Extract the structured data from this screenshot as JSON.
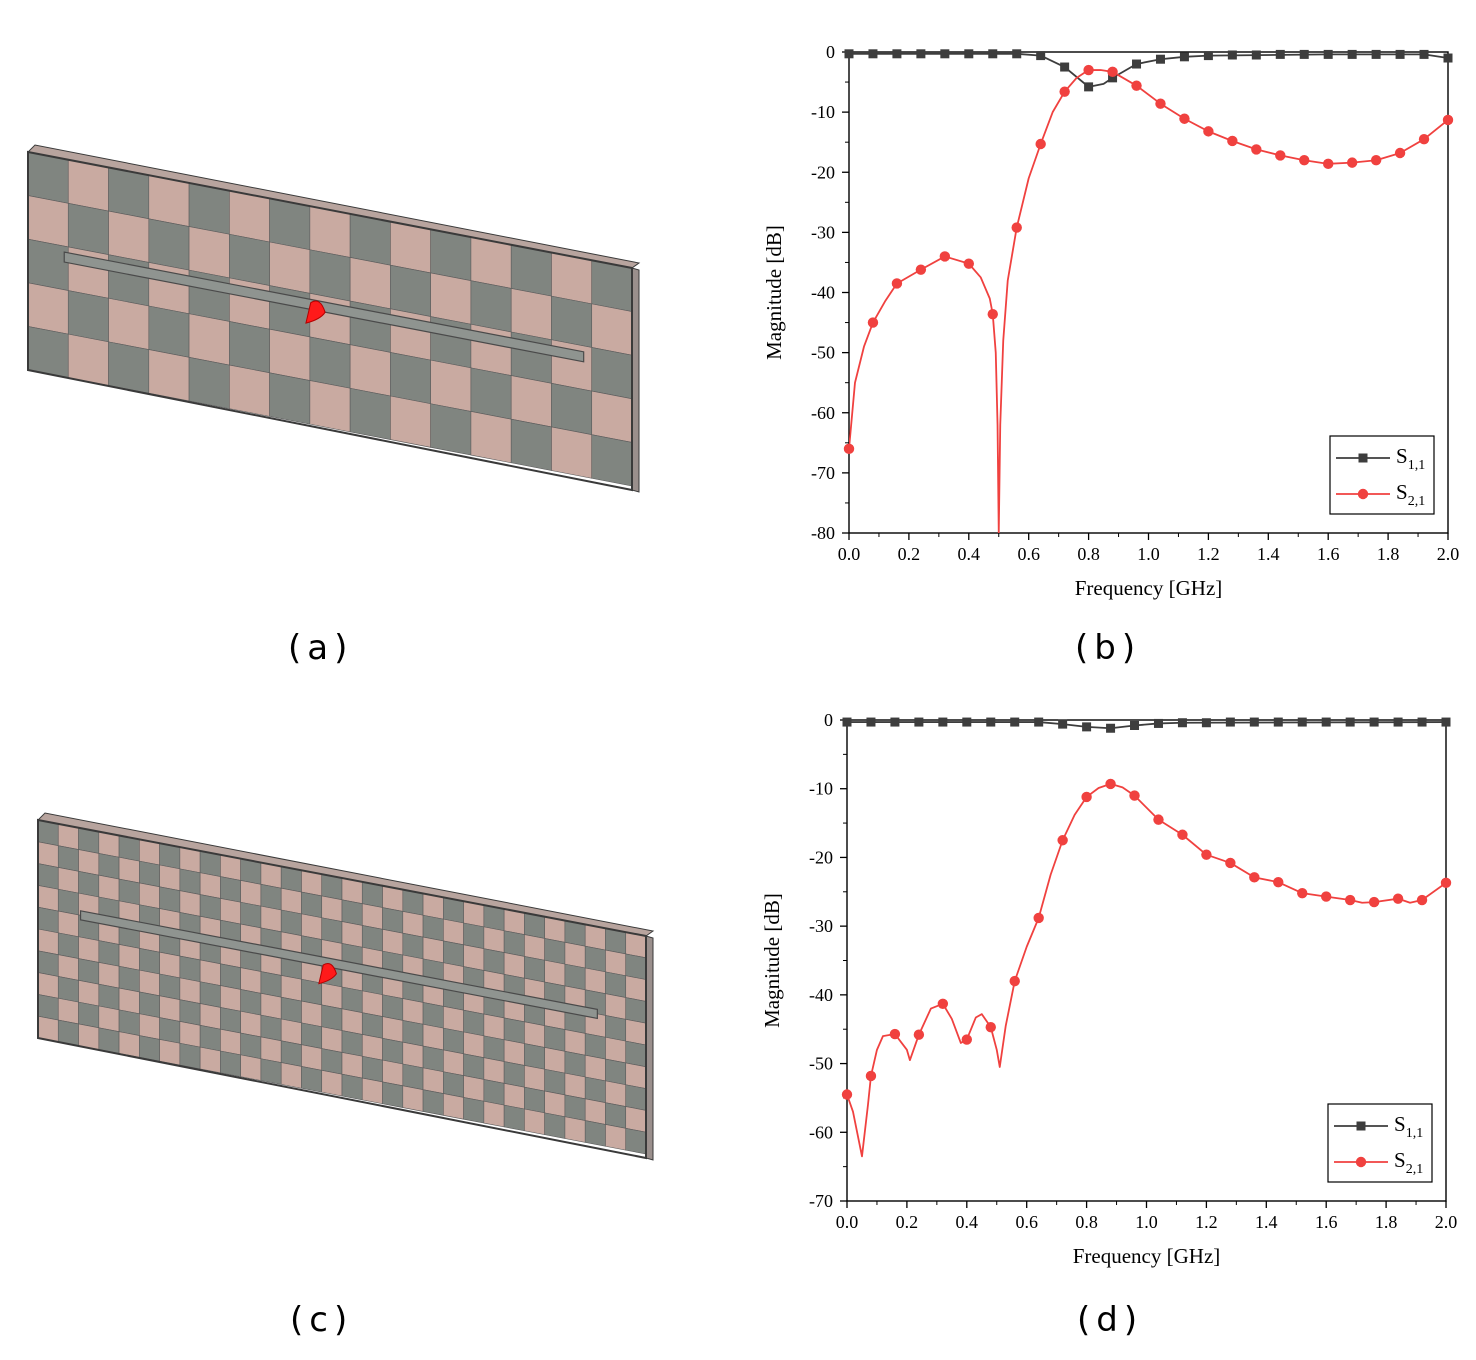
{
  "panel_labels": {
    "a": "(a)",
    "b": "(b)",
    "c": "(c)",
    "d": "(d)"
  },
  "colors": {
    "cell_dark": "#808580",
    "cell_light": "#c9aaa1",
    "board_edge": "#3a3a3a",
    "feed": "#ff1a1a",
    "s11": "#3d3d3d",
    "s21": "#f0413f"
  },
  "models": {
    "a": {
      "cols": 15,
      "rows": 5
    },
    "c": {
      "cols": 30,
      "rows": 10
    }
  },
  "chart_data": [
    {
      "id": "b",
      "type": "line",
      "xlabel": "Frequency [GHz]",
      "ylabel": "Magnitude [dB]",
      "xlim": [
        0.0,
        2.0
      ],
      "ylim": [
        -80,
        0
      ],
      "xticks": [
        "0.0",
        "0.2",
        "0.4",
        "0.6",
        "0.8",
        "1.0",
        "1.2",
        "1.4",
        "1.6",
        "1.8",
        "2.0"
      ],
      "yticks": [
        "0",
        "-10",
        "-20",
        "-30",
        "-40",
        "-50",
        "-60",
        "-70",
        "-80"
      ],
      "legend_position": "bottom-right",
      "series": [
        {
          "name": "S",
          "sub": "1,1",
          "marker": "square",
          "color": "#3d3d3d",
          "curve": [
            [
              0,
              -0.3
            ],
            [
              0.56,
              -0.3
            ],
            [
              0.64,
              -0.6
            ],
            [
              0.72,
              -2.5
            ],
            [
              0.8,
              -5.8
            ],
            [
              0.85,
              -5.3
            ],
            [
              0.88,
              -4.3
            ],
            [
              0.96,
              -2.0
            ],
            [
              1.04,
              -1.2
            ],
            [
              1.12,
              -0.8
            ],
            [
              1.2,
              -0.6
            ],
            [
              1.6,
              -0.4
            ],
            [
              1.92,
              -0.4
            ],
            [
              2.0,
              -1.0
            ]
          ],
          "x": [
            0.0,
            0.08,
            0.16,
            0.24,
            0.32,
            0.4,
            0.48,
            0.56,
            0.64,
            0.72,
            0.8,
            0.88,
            0.96,
            1.04,
            1.12,
            1.2,
            1.28,
            1.36,
            1.44,
            1.52,
            1.6,
            1.68,
            1.76,
            1.84,
            1.92,
            2.0
          ],
          "y": [
            -0.3,
            -0.3,
            -0.3,
            -0.3,
            -0.3,
            -0.3,
            -0.3,
            -0.3,
            -0.6,
            -2.5,
            -5.8,
            -4.3,
            -2.0,
            -1.2,
            -0.8,
            -0.6,
            -0.5,
            -0.5,
            -0.4,
            -0.4,
            -0.4,
            -0.4,
            -0.4,
            -0.4,
            -0.4,
            -1.0
          ]
        },
        {
          "name": "S",
          "sub": "2,1",
          "marker": "circle",
          "color": "#f0413f",
          "curve": [
            [
              0.0,
              -66
            ],
            [
              0.02,
              -55
            ],
            [
              0.05,
              -49
            ],
            [
              0.08,
              -45
            ],
            [
              0.12,
              -41.5
            ],
            [
              0.16,
              -38.5
            ],
            [
              0.24,
              -36.2
            ],
            [
              0.32,
              -34.0
            ],
            [
              0.4,
              -35.2
            ],
            [
              0.44,
              -37.5
            ],
            [
              0.47,
              -41
            ],
            [
              0.48,
              -43.6
            ],
            [
              0.49,
              -50
            ],
            [
              0.496,
              -62
            ],
            [
              0.5,
              -80
            ],
            [
              0.505,
              -62
            ],
            [
              0.515,
              -48
            ],
            [
              0.53,
              -38
            ],
            [
              0.56,
              -29.2
            ],
            [
              0.6,
              -21
            ],
            [
              0.64,
              -15.3
            ],
            [
              0.68,
              -10
            ],
            [
              0.72,
              -6.6
            ],
            [
              0.76,
              -4.3
            ],
            [
              0.8,
              -3.0
            ],
            [
              0.84,
              -3.0
            ],
            [
              0.88,
              -3.3
            ],
            [
              0.96,
              -5.6
            ],
            [
              1.04,
              -8.6
            ],
            [
              1.12,
              -11.1
            ],
            [
              1.2,
              -13.2
            ],
            [
              1.28,
              -14.8
            ],
            [
              1.36,
              -16.2
            ],
            [
              1.44,
              -17.2
            ],
            [
              1.52,
              -18.0
            ],
            [
              1.6,
              -18.6
            ],
            [
              1.68,
              -18.4
            ],
            [
              1.76,
              -18.0
            ],
            [
              1.84,
              -16.8
            ],
            [
              1.92,
              -14.5
            ],
            [
              2.0,
              -11.3
            ]
          ],
          "x": [
            0.0,
            0.08,
            0.16,
            0.24,
            0.32,
            0.4,
            0.48,
            0.56,
            0.64,
            0.72,
            0.8,
            0.88,
            0.96,
            1.04,
            1.12,
            1.2,
            1.28,
            1.36,
            1.44,
            1.52,
            1.6,
            1.68,
            1.76,
            1.84,
            1.92,
            2.0
          ],
          "y": [
            -66,
            -45,
            -38.5,
            -36.2,
            -34.0,
            -35.2,
            -43.6,
            -29.2,
            -15.3,
            -6.6,
            -3.0,
            -3.3,
            -5.6,
            -8.6,
            -11.1,
            -13.2,
            -14.8,
            -16.2,
            -17.2,
            -18.0,
            -18.6,
            -18.4,
            -18.0,
            -16.8,
            -14.5,
            -11.3
          ]
        }
      ]
    },
    {
      "id": "d",
      "type": "line",
      "xlabel": "Frequency [GHz]",
      "ylabel": "Magnitude [dB]",
      "xlim": [
        0.0,
        2.0
      ],
      "ylim": [
        -70,
        0
      ],
      "xticks": [
        "0.0",
        "0.2",
        "0.4",
        "0.6",
        "0.8",
        "1.0",
        "1.2",
        "1.4",
        "1.6",
        "1.8",
        "2.0"
      ],
      "yticks": [
        "0",
        "-10",
        "-20",
        "-30",
        "-40",
        "-50",
        "-60",
        "-70"
      ],
      "legend_position": "bottom-right",
      "series": [
        {
          "name": "S",
          "sub": "1,1",
          "marker": "square",
          "color": "#3d3d3d",
          "curve": [
            [
              0,
              -0.3
            ],
            [
              0.64,
              -0.3
            ],
            [
              0.72,
              -0.6
            ],
            [
              0.8,
              -1.0
            ],
            [
              0.88,
              -1.2
            ],
            [
              0.96,
              -0.8
            ],
            [
              1.04,
              -0.5
            ],
            [
              1.12,
              -0.4
            ],
            [
              2.0,
              -0.3
            ]
          ],
          "x": [
            0.0,
            0.08,
            0.16,
            0.24,
            0.32,
            0.4,
            0.48,
            0.56,
            0.64,
            0.72,
            0.8,
            0.88,
            0.96,
            1.04,
            1.12,
            1.2,
            1.28,
            1.36,
            1.44,
            1.52,
            1.6,
            1.68,
            1.76,
            1.84,
            1.92,
            2.0
          ],
          "y": [
            -0.3,
            -0.3,
            -0.3,
            -0.3,
            -0.3,
            -0.3,
            -0.3,
            -0.3,
            -0.3,
            -0.6,
            -1.0,
            -1.2,
            -0.8,
            -0.5,
            -0.4,
            -0.4,
            -0.3,
            -0.3,
            -0.3,
            -0.3,
            -0.3,
            -0.3,
            -0.3,
            -0.3,
            -0.3,
            -0.3
          ]
        },
        {
          "name": "S",
          "sub": "2,1",
          "marker": "circle",
          "color": "#f0413f",
          "curve": [
            [
              0.0,
              -54.5
            ],
            [
              0.02,
              -57
            ],
            [
              0.05,
              -63.5
            ],
            [
              0.07,
              -56
            ],
            [
              0.08,
              -51.8
            ],
            [
              0.1,
              -48
            ],
            [
              0.12,
              -46
            ],
            [
              0.16,
              -45.7
            ],
            [
              0.2,
              -48
            ],
            [
              0.21,
              -49.5
            ],
            [
              0.24,
              -45.8
            ],
            [
              0.28,
              -42
            ],
            [
              0.32,
              -41.3
            ],
            [
              0.35,
              -43.5
            ],
            [
              0.38,
              -47
            ],
            [
              0.4,
              -46.5
            ],
            [
              0.43,
              -43.3
            ],
            [
              0.45,
              -42.8
            ],
            [
              0.48,
              -44.7
            ],
            [
              0.5,
              -48
            ],
            [
              0.51,
              -50.5
            ],
            [
              0.53,
              -44.5
            ],
            [
              0.56,
              -38
            ],
            [
              0.6,
              -33
            ],
            [
              0.64,
              -28.8
            ],
            [
              0.68,
              -22.5
            ],
            [
              0.72,
              -17.5
            ],
            [
              0.76,
              -13.8
            ],
            [
              0.8,
              -11.2
            ],
            [
              0.84,
              -9.9
            ],
            [
              0.88,
              -9.3
            ],
            [
              0.92,
              -9.8
            ],
            [
              0.96,
              -11.0
            ],
            [
              1.04,
              -14.5
            ],
            [
              1.12,
              -16.7
            ],
            [
              1.2,
              -19.6
            ],
            [
              1.28,
              -20.8
            ],
            [
              1.36,
              -22.9
            ],
            [
              1.44,
              -23.6
            ],
            [
              1.52,
              -25.2
            ],
            [
              1.6,
              -25.7
            ],
            [
              1.68,
              -26.2
            ],
            [
              1.72,
              -26.6
            ],
            [
              1.76,
              -26.5
            ],
            [
              1.84,
              -26.0
            ],
            [
              1.88,
              -26.6
            ],
            [
              1.92,
              -26.2
            ],
            [
              2.0,
              -23.7
            ]
          ],
          "x": [
            0.0,
            0.08,
            0.16,
            0.24,
            0.32,
            0.4,
            0.48,
            0.56,
            0.64,
            0.72,
            0.8,
            0.88,
            0.96,
            1.04,
            1.12,
            1.2,
            1.28,
            1.36,
            1.44,
            1.52,
            1.6,
            1.68,
            1.76,
            1.84,
            1.92,
            2.0
          ],
          "y": [
            -54.5,
            -51.8,
            -45.7,
            -45.8,
            -41.3,
            -46.5,
            -44.7,
            -38,
            -28.8,
            -17.5,
            -11.2,
            -9.3,
            -11.0,
            -14.5,
            -16.7,
            -19.6,
            -20.8,
            -22.9,
            -23.6,
            -25.2,
            -25.7,
            -26.2,
            -26.5,
            -26.0,
            -26.2,
            -23.7
          ]
        }
      ]
    }
  ]
}
